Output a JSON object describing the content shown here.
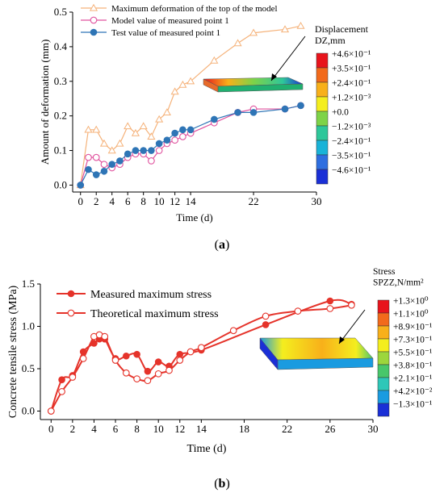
{
  "chart_data": [
    {
      "panel_label": "(a)",
      "type": "line",
      "xlabel": "Time (d)",
      "ylabel": "Amount of deformation (mm)",
      "xlim": [
        -1,
        30
      ],
      "ylim": [
        -0.02,
        0.5
      ],
      "x_ticks": [
        0,
        2,
        4,
        6,
        8,
        10,
        12,
        14,
        22,
        30
      ],
      "y_ticks": [
        0.0,
        0.1,
        0.2,
        0.3,
        0.4,
        0.5
      ],
      "legend_position": "top-left",
      "series": [
        {
          "name": "Maximum deformation of the top of the model",
          "color": "#f5b27a",
          "marker": "open-triangle",
          "x": [
            0,
            1,
            2,
            3,
            4,
            5,
            6,
            7,
            8,
            9,
            10,
            11,
            12,
            13,
            14,
            17,
            20,
            22,
            26,
            28
          ],
          "y": [
            0.0,
            0.16,
            0.16,
            0.12,
            0.1,
            0.12,
            0.17,
            0.15,
            0.17,
            0.14,
            0.19,
            0.21,
            0.27,
            0.29,
            0.3,
            0.36,
            0.41,
            0.44,
            0.45,
            0.46
          ]
        },
        {
          "name": "Model value of measured point 1",
          "color": "#e0529e",
          "marker": "open-circle",
          "x": [
            0,
            1,
            2,
            3,
            4,
            5,
            6,
            7,
            8,
            9,
            10,
            11,
            12,
            13,
            14,
            17,
            20,
            22,
            26,
            28
          ],
          "y": [
            0.0,
            0.08,
            0.08,
            0.06,
            0.05,
            0.06,
            0.08,
            0.09,
            0.09,
            0.07,
            0.1,
            0.12,
            0.13,
            0.14,
            0.15,
            0.18,
            0.21,
            0.22,
            0.22,
            0.23
          ]
        },
        {
          "name": "Test value of measured point 1",
          "color": "#2e75b6",
          "marker": "filled-circle",
          "x": [
            0,
            1,
            2,
            3,
            4,
            5,
            6,
            7,
            8,
            9,
            10,
            11,
            12,
            13,
            14,
            17,
            20,
            22,
            26,
            28
          ],
          "y": [
            0.0,
            0.045,
            0.03,
            0.04,
            0.06,
            0.07,
            0.09,
            0.1,
            0.1,
            0.1,
            0.12,
            0.13,
            0.15,
            0.16,
            0.16,
            0.19,
            0.21,
            0.21,
            0.22,
            0.23
          ]
        }
      ],
      "colorbar": {
        "title_line1": "Displacement",
        "title_line2": "DZ,mm",
        "labels": [
          "+4.6×10⁻¹",
          "+3.5×10⁻¹",
          "+2.4×10⁻¹",
          "+1.2×10⁻³",
          "+0.0",
          "−1.2×10⁻³",
          "−2.4×10⁻¹",
          "−3.5×10⁻¹",
          "−4.6×10⁻¹"
        ],
        "colors": [
          "#e8141c",
          "#f26a1b",
          "#f8b01a",
          "#f4ee1e",
          "#7ed348",
          "#2ec79a",
          "#19b3d8",
          "#2e6ee0",
          "#1a2fd6"
        ]
      }
    },
    {
      "panel_label": "(b)",
      "type": "line",
      "xlabel": "Time (d)",
      "ylabel": "Concrete tensile stress (MPa)",
      "xlim": [
        -1,
        30
      ],
      "ylim": [
        -0.1,
        1.5
      ],
      "x_ticks": [
        0,
        2,
        4,
        6,
        8,
        10,
        12,
        14,
        18,
        22,
        26,
        30
      ],
      "y_ticks": [
        0.0,
        0.5,
        1.0,
        1.5
      ],
      "legend_position": "top-left",
      "series": [
        {
          "name": "Measured maximum stress",
          "color": "#e5332a",
          "marker": "filled-circle",
          "x": [
            0,
            1,
            2,
            3,
            4,
            4.5,
            5,
            6,
            7,
            8,
            9,
            10,
            11,
            12,
            14,
            20,
            26,
            28
          ],
          "y": [
            0.0,
            0.37,
            0.42,
            0.7,
            0.8,
            0.85,
            0.85,
            0.62,
            0.65,
            0.67,
            0.47,
            0.58,
            0.53,
            0.67,
            0.72,
            1.02,
            1.3,
            1.26
          ]
        },
        {
          "name": "Theoretical maximum stress",
          "color": "#e5332a",
          "marker": "open-circle",
          "x": [
            0,
            1,
            2,
            3,
            4,
            4.5,
            5,
            6,
            7,
            8,
            9,
            10,
            11,
            12,
            13,
            14,
            17,
            20,
            23,
            26,
            28
          ],
          "y": [
            0.0,
            0.23,
            0.4,
            0.62,
            0.88,
            0.9,
            0.88,
            0.6,
            0.45,
            0.38,
            0.36,
            0.44,
            0.48,
            0.6,
            0.7,
            0.75,
            0.95,
            1.12,
            1.18,
            1.21,
            1.25
          ]
        }
      ],
      "colorbar": {
        "title_line1": "Stress",
        "title_line2": "SPZZ,N/mm²",
        "labels": [
          "+1.3×10⁰",
          "+1.1×10⁰",
          "+8.9×10⁻¹",
          "+7.3×10⁻¹",
          "+5.5×10⁻¹",
          "+3.8×10⁻¹",
          "+2.1×10⁻¹",
          "+4.2×10⁻²",
          "−1.3×10⁻¹"
        ],
        "colors": [
          "#e8141c",
          "#f26a1b",
          "#f8b01a",
          "#f4ee1e",
          "#9cd63c",
          "#48c76a",
          "#2ec7b8",
          "#1a9be0",
          "#1a2fd6"
        ]
      }
    }
  ]
}
